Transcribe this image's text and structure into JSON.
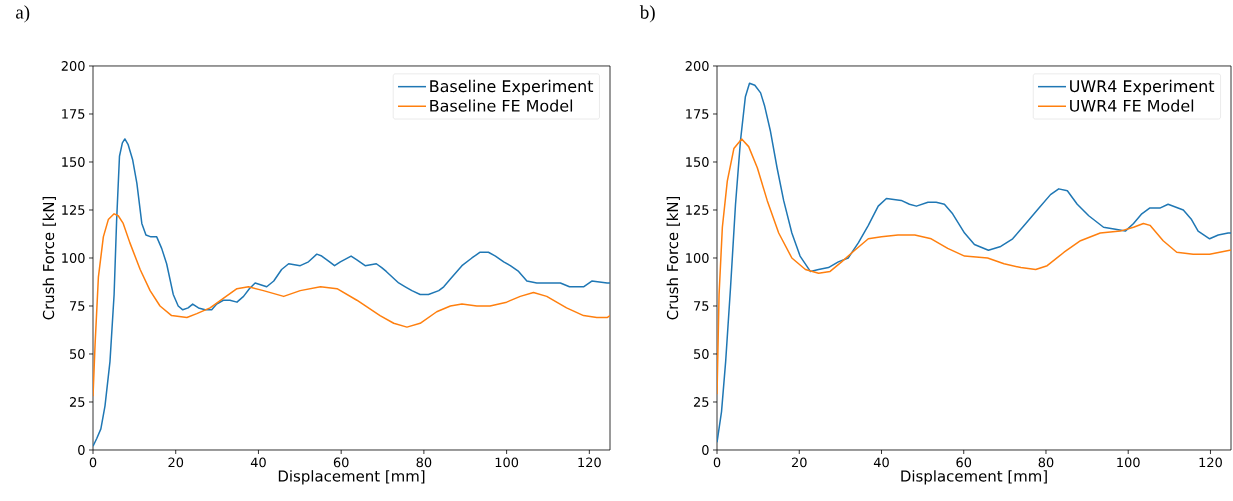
{
  "chart_data": [
    {
      "type": "line",
      "title": "a)",
      "xlabel": "Displacement [mm]",
      "ylabel": "Crush Force [kN]",
      "xlim": [
        0,
        125
      ],
      "ylim": [
        0,
        200
      ],
      "xticks": [
        0,
        20,
        40,
        60,
        80,
        100,
        120
      ],
      "yticks": [
        0,
        25,
        50,
        75,
        100,
        125,
        150,
        175,
        200
      ],
      "legend": "top right",
      "series": [
        {
          "name": "Baseline Experiment",
          "color": "#1f77b4",
          "x": [
            0,
            0.9,
            1.9,
            2.9,
            4.1,
            5.1,
            5.7,
            6.4,
            7.1,
            7.7,
            8.5,
            9.6,
            10.6,
            11.8,
            12.8,
            14,
            15.4,
            16.6,
            17.8,
            19.4,
            20.6,
            21.7,
            23,
            24.1,
            25.5,
            27.1,
            28.7,
            29.9,
            31.5,
            33.1,
            34.8,
            36.4,
            37.8,
            39.2,
            42,
            43.7,
            45.6,
            47.3,
            50.1,
            52.1,
            54.1,
            55.3,
            57.2,
            58.4,
            59.8,
            62.4,
            63.8,
            65.8,
            68.5,
            69.8,
            70.9,
            73.9,
            75.5,
            77.1,
            79.1,
            81.1,
            83.6,
            84.8,
            86.4,
            89.2,
            91.6,
            93.6,
            95.6,
            97.3,
            99.3,
            100.9,
            102.9,
            104.9,
            107.3,
            110.6,
            113,
            115.2,
            118.6,
            120.6,
            124.3,
            125
          ],
          "values": [
            2,
            6,
            11,
            23,
            46,
            81,
            119,
            153,
            160,
            162,
            159,
            151,
            139,
            118,
            112,
            111,
            111,
            105,
            97,
            81,
            75,
            73,
            74,
            76,
            74,
            73,
            73,
            76,
            78,
            78,
            77,
            80,
            84,
            87,
            85,
            88,
            94,
            97,
            96,
            98,
            102,
            101,
            98,
            96,
            98,
            101,
            99,
            96,
            97,
            95,
            93,
            87,
            85,
            83,
            81,
            81,
            83,
            85,
            89,
            96,
            100,
            103,
            103,
            101,
            98,
            96,
            93,
            88,
            87,
            87,
            87,
            85,
            85,
            88,
            87,
            87
          ]
        },
        {
          "name": "Baseline FE Model",
          "color": "#ff7f0e",
          "x": [
            0,
            0.5,
            1.3,
            2.5,
            3.7,
            5.1,
            6.1,
            7.3,
            8.9,
            11.4,
            13.8,
            16.2,
            19,
            22.7,
            25.1,
            28.3,
            31.5,
            34.8,
            37.6,
            41.2,
            46.1,
            50.1,
            55,
            59,
            63.8,
            69.4,
            72.7,
            75.9,
            79.1,
            83.1,
            86.4,
            89.2,
            92.8,
            96,
            100,
            103.3,
            106.5,
            109.7,
            114.5,
            118.6,
            121.8,
            124.3,
            125
          ],
          "values": [
            28,
            55,
            90,
            111,
            120,
            123,
            122,
            118,
            108,
            94,
            83,
            75,
            70,
            69,
            71,
            74,
            79,
            84,
            85,
            83,
            80,
            83,
            85,
            84,
            78,
            70,
            66,
            64,
            66,
            72,
            75,
            76,
            75,
            75,
            77,
            80,
            82,
            80,
            74,
            70,
            69,
            69,
            70
          ]
        }
      ]
    },
    {
      "type": "line",
      "title": "b)",
      "xlabel": "Displacement [mm]",
      "ylabel": "Crush Force [kN]",
      "xlim": [
        0,
        125
      ],
      "ylim": [
        0,
        200
      ],
      "xticks": [
        0,
        20,
        40,
        60,
        80,
        100,
        120
      ],
      "yticks": [
        0,
        25,
        50,
        75,
        100,
        125,
        150,
        175,
        200
      ],
      "legend": "top right",
      "series": [
        {
          "name": "UWR4 Experiment",
          "color": "#1f77b4",
          "x": [
            0,
            1.1,
            2.1,
            3.3,
            4.5,
            5.7,
            6.9,
            7.9,
            9.2,
            10.6,
            11.6,
            13,
            14.6,
            16.2,
            18.2,
            20.2,
            22.7,
            24.7,
            27.1,
            29.5,
            31.9,
            34.4,
            36.8,
            39.2,
            41.2,
            44.8,
            46.8,
            48.5,
            51.3,
            53.3,
            55.3,
            57.3,
            60.2,
            62.6,
            66,
            69,
            71.9,
            75.1,
            78.3,
            81.1,
            83.1,
            85.2,
            87.6,
            90.4,
            94,
            96.9,
            99.3,
            101.3,
            103.3,
            105.2,
            107.7,
            109.7,
            113.4,
            115.4,
            117,
            119.8,
            121.9,
            124.3,
            125
          ],
          "values": [
            4,
            20,
            46,
            85,
            128,
            161,
            184,
            191,
            190,
            186,
            179,
            166,
            147,
            130,
            113,
            101,
            93,
            94,
            95,
            98,
            100,
            108,
            117,
            127,
            131,
            130,
            128,
            127,
            129,
            129,
            128,
            123,
            113,
            107,
            104,
            106,
            110,
            118,
            126,
            133,
            136,
            135,
            128,
            122,
            116,
            115,
            114,
            118,
            123,
            126,
            126,
            128,
            125,
            120,
            114,
            110,
            112,
            113,
            113
          ]
        },
        {
          "name": "UWR4 FE Model",
          "color": "#ff7f0e",
          "x": [
            0,
            0.5,
            1.3,
            2.5,
            4.1,
            6,
            7.7,
            9.8,
            12.2,
            15,
            18.2,
            21.5,
            24.7,
            27.5,
            30.3,
            33.5,
            36.8,
            40,
            44,
            48.1,
            52.1,
            56.1,
            60.2,
            65.8,
            69.8,
            73.9,
            77.5,
            80.3,
            84.4,
            88.4,
            93.2,
            98.1,
            101.3,
            103.7,
            105.3,
            108.5,
            111.8,
            115.8,
            119.8,
            124.7,
            125
          ],
          "values": [
            29,
            81,
            116,
            140,
            157,
            162,
            158,
            147,
            130,
            113,
            100,
            94,
            92,
            93,
            98,
            104,
            110,
            111,
            112,
            112,
            110,
            105,
            101,
            100,
            97,
            95,
            94,
            96,
            103,
            109,
            113,
            114,
            116,
            118,
            117,
            109,
            103,
            102,
            102,
            104,
            104
          ]
        }
      ]
    }
  ]
}
